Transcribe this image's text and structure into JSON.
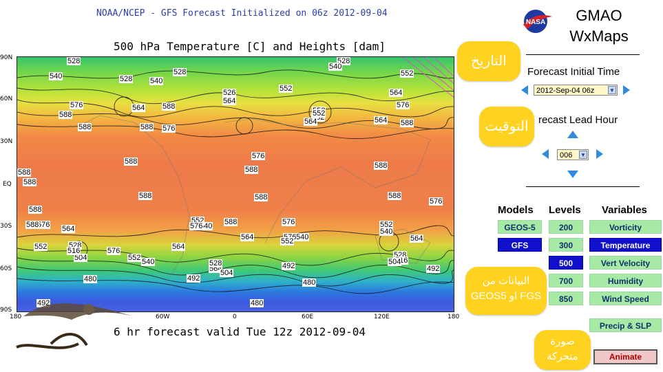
{
  "header": {
    "caption": "NOAA/NCEP - GFS Forecast Initialized on 06z 2012-09-04",
    "map_title": "500 hPa Temperature [C] and Heights [dam]",
    "valid_caption": "6 hr forecast valid Tue 12z 2012-09-04"
  },
  "map": {
    "lat_labels": [
      "90N",
      "60N",
      "30N",
      "EQ",
      "30S",
      "60S",
      "90S"
    ],
    "lon_labels": [
      "180",
      "60W",
      "0",
      "60E",
      "120E",
      "180"
    ],
    "contour_labels": [
      "528",
      "540",
      "528",
      "540",
      "528",
      "528",
      "540",
      "552",
      "526",
      "564",
      "552",
      "564",
      "576",
      "588",
      "576",
      "564",
      "552",
      "588",
      "552",
      "552",
      "564",
      "564",
      "576",
      "588",
      "588",
      "588",
      "576",
      "588",
      "588",
      "588",
      "588",
      "588",
      "588",
      "588",
      "588",
      "576",
      "564",
      "588",
      "576",
      "552",
      "540",
      "588",
      "564",
      "564",
      "576",
      "552",
      "540",
      "564",
      "576",
      "552",
      "504",
      "564",
      "552",
      "528",
      "516",
      "504",
      "492",
      "540",
      "528",
      "516",
      "504",
      "492",
      "492",
      "480",
      "480",
      "480",
      "492",
      "576",
      "588",
      "540",
      "576",
      "552",
      "528"
    ]
  },
  "panel": {
    "brand": "NASA",
    "title_line1": "GMAO",
    "title_line2": "WxMaps",
    "init_label": "Forecast Initial Time",
    "init_value": "2012-Sep-04 06z",
    "lead_label": "recast Lead Hour",
    "lead_value": "006",
    "models_header": "Models",
    "levels_header": "Levels",
    "variables_header": "Variables",
    "models": [
      "GEOS-5",
      "GFS"
    ],
    "levels": [
      "200",
      "300",
      "500",
      "700",
      "850"
    ],
    "variables": [
      "Vorticity",
      "Temperature",
      "Vert Velocity",
      "Humidity",
      "Wind Speed",
      "Precip & SLP"
    ],
    "selected_model": "GFS",
    "selected_level": "500",
    "selected_variable": "Temperature",
    "animate_label": "Animate"
  },
  "annotations": {
    "date": "التاريخ",
    "time": "التوقيت",
    "data_source_line1": "البيانات من",
    "data_source_line2": "GEOS5 او FGS",
    "animation_line1": "صورة",
    "animation_line2": "متحركة"
  },
  "colors": {
    "button_green": "#a6eaa6",
    "button_selected": "#1010cc",
    "bubble_yellow": "#ffd21f",
    "caption_blue": "#2a3ea8"
  }
}
